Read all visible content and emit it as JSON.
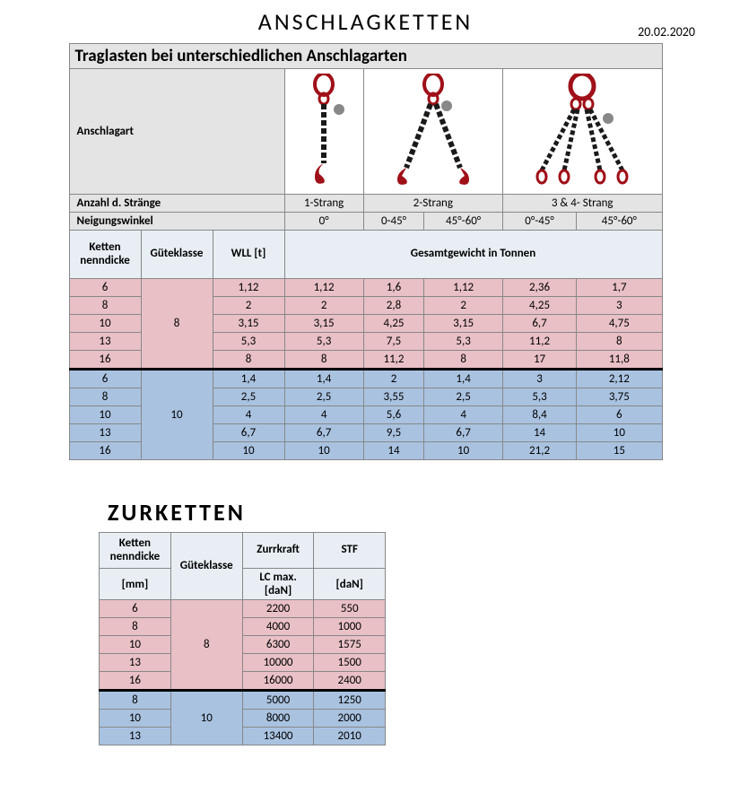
{
  "meta": {
    "title": "ANSCHLAGKETTEN",
    "date": "20.02.2020",
    "subtitle": "Traglasten bei unterschiedlichen Anschlagarten"
  },
  "colors": {
    "gray_header": "#e4e4e4",
    "blue_header": "#e8eef4",
    "pink_row": "#e8c0c5",
    "blue_row": "#a9c2e0",
    "chain_red": "#a01018",
    "chain_black": "#1a1a1a",
    "border": "#888888"
  },
  "table1": {
    "labels": {
      "anschlagart": "Anschlagart",
      "anzahl": "Anzahl d. Stränge",
      "neigung": "Neigungswinkel",
      "ketten": "Ketten nenndicke",
      "guete": "Güteklasse",
      "wll": "WLL [t]",
      "gesamt": "Gesamtgewicht in Tonnen"
    },
    "strands": [
      "1-Strang",
      "2-Strang",
      "3 & 4- Strang"
    ],
    "angles": [
      "0°",
      "0-45°",
      "45°-60°",
      "0°-45°",
      "45°-60°"
    ],
    "group8": {
      "guete": "8",
      "rows": [
        {
          "d": "6",
          "wll": "1,12",
          "v": [
            "1,12",
            "1,6",
            "1,12",
            "2,36",
            "1,7"
          ]
        },
        {
          "d": "8",
          "wll": "2",
          "v": [
            "2",
            "2,8",
            "2",
            "4,25",
            "3"
          ]
        },
        {
          "d": "10",
          "wll": "3,15",
          "v": [
            "3,15",
            "4,25",
            "3,15",
            "6,7",
            "4,75"
          ]
        },
        {
          "d": "13",
          "wll": "5,3",
          "v": [
            "5,3",
            "7,5",
            "5,3",
            "11,2",
            "8"
          ]
        },
        {
          "d": "16",
          "wll": "8",
          "v": [
            "8",
            "11,2",
            "8",
            "17",
            "11,8"
          ]
        }
      ]
    },
    "group10": {
      "guete": "10",
      "rows": [
        {
          "d": "6",
          "wll": "1,4",
          "v": [
            "1,4",
            "2",
            "1,4",
            "3",
            "2,12"
          ]
        },
        {
          "d": "8",
          "wll": "2,5",
          "v": [
            "2,5",
            "3,55",
            "2,5",
            "5,3",
            "3,75"
          ]
        },
        {
          "d": "10",
          "wll": "4",
          "v": [
            "4",
            "5,6",
            "4",
            "8,4",
            "6"
          ]
        },
        {
          "d": "13",
          "wll": "6,7",
          "v": [
            "6,7",
            "9,5",
            "6,7",
            "14",
            "10"
          ]
        },
        {
          "d": "16",
          "wll": "10",
          "v": [
            "10",
            "14",
            "10",
            "21,2",
            "15"
          ]
        }
      ]
    }
  },
  "section2": {
    "title": "ZURKETTEN",
    "labels": {
      "ketten": "Ketten nenndicke",
      "mm": "[mm]",
      "guete": "Güteklasse",
      "zurr": "Zurrkraft",
      "lc": "LC max. [daN]",
      "stf": "STF",
      "dan": "[daN]"
    },
    "group8": {
      "guete": "8",
      "rows": [
        {
          "d": "6",
          "lc": "2200",
          "stf": "550"
        },
        {
          "d": "8",
          "lc": "4000",
          "stf": "1000"
        },
        {
          "d": "10",
          "lc": "6300",
          "stf": "1575"
        },
        {
          "d": "13",
          "lc": "10000",
          "stf": "1500"
        },
        {
          "d": "16",
          "lc": "16000",
          "stf": "2400"
        }
      ]
    },
    "group10": {
      "guete": "10",
      "rows": [
        {
          "d": "8",
          "lc": "5000",
          "stf": "1250"
        },
        {
          "d": "10",
          "lc": "8000",
          "stf": "2000"
        },
        {
          "d": "13",
          "lc": "13400",
          "stf": "2010"
        }
      ]
    }
  }
}
